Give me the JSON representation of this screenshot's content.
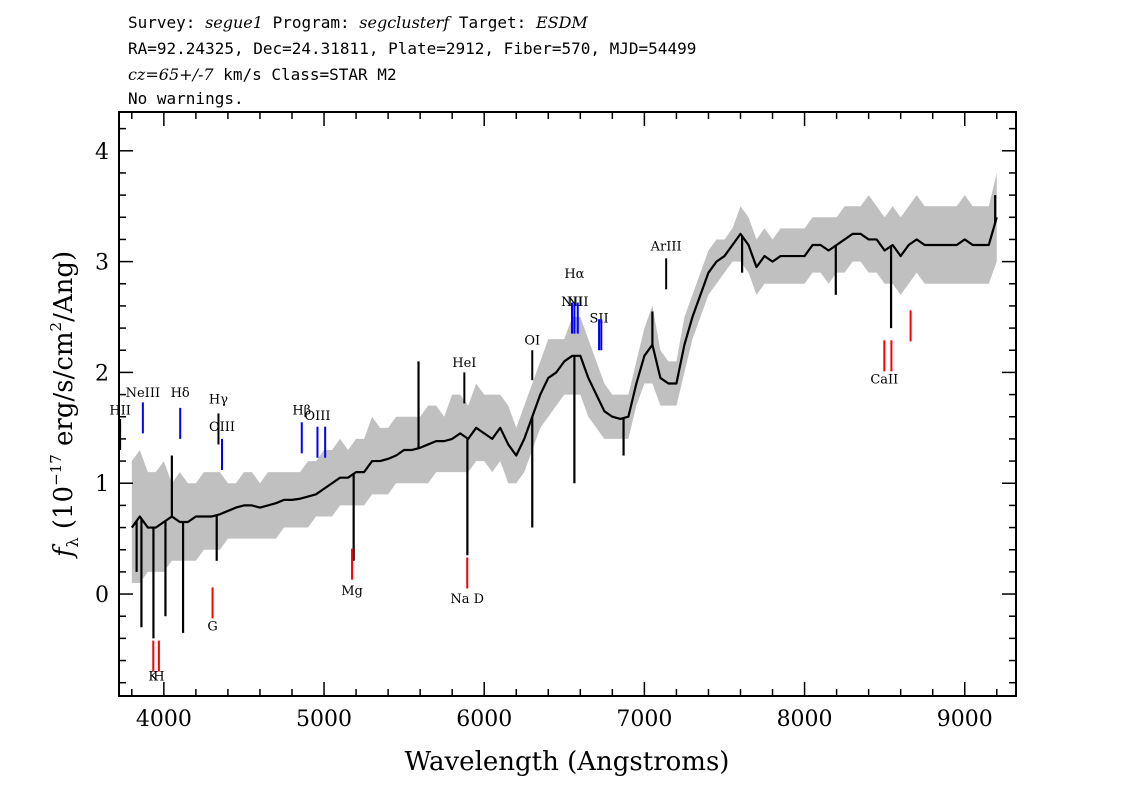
{
  "header": {
    "line1": [
      {
        "text": "Survey: ",
        "italic": false
      },
      {
        "text": "segue1",
        "italic": true
      },
      {
        "text": " Program: ",
        "italic": false
      },
      {
        "text": "segclusterf",
        "italic": true
      },
      {
        "text": " Target: ",
        "italic": false
      },
      {
        "text": "ESDM",
        "italic": true
      }
    ],
    "line2": "RA=92.24325, Dec=24.31811, Plate=2912, Fiber=570, MJD=54499",
    "line3": [
      {
        "text": "cz=65+/-7",
        "italic": true
      },
      {
        "text": " km/s Class=STAR M2",
        "italic": false
      }
    ],
    "line4": "No warnings."
  },
  "chart_data": {
    "type": "line",
    "xlabel": "Wavelength (Angstroms)",
    "ylabel": "fλ (10⁻¹⁷ erg/s/cm²/Ang)",
    "xlim": [
      3720,
      9320
    ],
    "ylim": [
      -0.92,
      4.35
    ],
    "x_ticks": [
      4000,
      5000,
      6000,
      7000,
      8000,
      9000
    ],
    "y_ticks": [
      0,
      1,
      2,
      3,
      4
    ],
    "grid": false,
    "series": [
      {
        "role": "error",
        "color": "#bbbbbb",
        "x": [
          3800,
          3850,
          3900,
          3950,
          4000,
          4050,
          4100,
          4150,
          4200,
          4250,
          4300,
          4350,
          4400,
          4450,
          4500,
          4550,
          4600,
          4650,
          4700,
          4750,
          4800,
          4850,
          4900,
          4950,
          5000,
          5050,
          5100,
          5150,
          5200,
          5250,
          5300,
          5350,
          5400,
          5450,
          5500,
          5550,
          5600,
          5650,
          5700,
          5750,
          5800,
          5850,
          5900,
          5950,
          6000,
          6050,
          6100,
          6150,
          6200,
          6250,
          6300,
          6350,
          6400,
          6450,
          6500,
          6550,
          6600,
          6650,
          6700,
          6750,
          6800,
          6850,
          6900,
          6950,
          7000,
          7050,
          7100,
          7150,
          7200,
          7250,
          7300,
          7350,
          7400,
          7450,
          7500,
          7550,
          7600,
          7650,
          7700,
          7750,
          7800,
          7850,
          7900,
          7950,
          8000,
          8050,
          8100,
          8150,
          8200,
          8250,
          8300,
          8350,
          8400,
          8450,
          8500,
          8550,
          8600,
          8650,
          8700,
          8750,
          8800,
          8850,
          8900,
          8950,
          9000,
          9050,
          9100,
          9150,
          9200
        ],
        "upper": [
          1.2,
          1.3,
          1.1,
          1.1,
          1.2,
          1.0,
          1.1,
          1.0,
          1.0,
          1.1,
          1.1,
          1.1,
          1.0,
          1.0,
          1.1,
          1.1,
          1.0,
          1.1,
          1.1,
          1.1,
          1.1,
          1.1,
          1.2,
          1.2,
          1.3,
          1.3,
          1.4,
          1.3,
          1.4,
          1.4,
          1.6,
          1.5,
          1.5,
          1.6,
          1.6,
          1.6,
          1.6,
          1.7,
          1.7,
          1.6,
          1.8,
          1.8,
          1.7,
          1.9,
          1.8,
          1.8,
          1.8,
          1.7,
          1.5,
          1.7,
          1.9,
          2.1,
          2.3,
          2.3,
          2.3,
          2.5,
          2.5,
          2.3,
          2.1,
          1.9,
          1.8,
          1.8,
          1.8,
          2.1,
          2.4,
          2.6,
          2.2,
          2.1,
          2.1,
          2.5,
          2.7,
          2.9,
          3.1,
          3.2,
          3.2,
          3.3,
          3.5,
          3.4,
          3.2,
          3.3,
          3.2,
          3.3,
          3.3,
          3.3,
          3.3,
          3.4,
          3.4,
          3.4,
          3.4,
          3.5,
          3.5,
          3.5,
          3.6,
          3.5,
          3.4,
          3.5,
          3.4,
          3.5,
          3.6,
          3.5,
          3.5,
          3.5,
          3.5,
          3.5,
          3.6,
          3.5,
          3.5,
          3.5,
          3.8
        ],
        "lower": [
          0.1,
          0.1,
          0.2,
          0.2,
          0.2,
          0.3,
          0.3,
          0.3,
          0.3,
          0.4,
          0.4,
          0.4,
          0.5,
          0.5,
          0.5,
          0.5,
          0.5,
          0.5,
          0.5,
          0.6,
          0.6,
          0.6,
          0.6,
          0.7,
          0.7,
          0.7,
          0.8,
          0.8,
          0.8,
          0.8,
          0.9,
          0.9,
          0.9,
          1.0,
          1.0,
          1.0,
          1.0,
          1.0,
          1.1,
          1.1,
          1.1,
          1.1,
          1.1,
          1.2,
          1.2,
          1.1,
          1.2,
          1.0,
          1.0,
          1.1,
          1.3,
          1.5,
          1.6,
          1.7,
          1.8,
          1.8,
          1.8,
          1.6,
          1.5,
          1.4,
          1.4,
          1.4,
          1.4,
          1.7,
          1.9,
          1.9,
          1.7,
          1.7,
          1.7,
          2.0,
          2.3,
          2.5,
          2.7,
          2.8,
          2.9,
          3.0,
          3.0,
          2.9,
          2.7,
          2.8,
          2.8,
          2.8,
          2.8,
          2.8,
          2.8,
          2.9,
          2.9,
          2.8,
          2.9,
          2.9,
          3.0,
          3.0,
          2.9,
          2.9,
          2.8,
          2.8,
          2.7,
          2.8,
          2.9,
          2.8,
          2.8,
          2.8,
          2.8,
          2.8,
          2.8,
          2.8,
          2.8,
          2.8,
          3.0
        ]
      },
      {
        "role": "flux",
        "color": "#000000",
        "x": [
          3800,
          3850,
          3900,
          3950,
          4000,
          4050,
          4100,
          4150,
          4200,
          4250,
          4300,
          4350,
          4400,
          4450,
          4500,
          4550,
          4600,
          4650,
          4700,
          4750,
          4800,
          4850,
          4900,
          4950,
          5000,
          5050,
          5100,
          5150,
          5200,
          5250,
          5300,
          5350,
          5400,
          5450,
          5500,
          5550,
          5600,
          5650,
          5700,
          5750,
          5800,
          5850,
          5900,
          5950,
          6000,
          6050,
          6100,
          6150,
          6200,
          6250,
          6300,
          6350,
          6400,
          6450,
          6500,
          6550,
          6600,
          6650,
          6700,
          6750,
          6800,
          6850,
          6900,
          6950,
          7000,
          7050,
          7100,
          7150,
          7200,
          7250,
          7300,
          7350,
          7400,
          7450,
          7500,
          7550,
          7600,
          7650,
          7700,
          7750,
          7800,
          7850,
          7900,
          7950,
          8000,
          8050,
          8100,
          8150,
          8200,
          8250,
          8300,
          8350,
          8400,
          8450,
          8500,
          8550,
          8600,
          8650,
          8700,
          8750,
          8800,
          8850,
          8900,
          8950,
          9000,
          9050,
          9100,
          9150,
          9200
        ],
        "values": [
          0.6,
          0.7,
          0.6,
          0.6,
          0.65,
          0.7,
          0.65,
          0.65,
          0.7,
          0.7,
          0.7,
          0.72,
          0.75,
          0.78,
          0.8,
          0.8,
          0.78,
          0.8,
          0.82,
          0.85,
          0.85,
          0.86,
          0.88,
          0.9,
          0.95,
          1.0,
          1.05,
          1.05,
          1.1,
          1.1,
          1.2,
          1.2,
          1.22,
          1.25,
          1.3,
          1.3,
          1.32,
          1.35,
          1.38,
          1.38,
          1.4,
          1.45,
          1.4,
          1.5,
          1.45,
          1.4,
          1.5,
          1.35,
          1.25,
          1.4,
          1.6,
          1.8,
          1.95,
          2.0,
          2.1,
          2.15,
          2.15,
          1.95,
          1.8,
          1.65,
          1.6,
          1.58,
          1.6,
          1.9,
          2.15,
          2.25,
          1.95,
          1.9,
          1.9,
          2.25,
          2.5,
          2.7,
          2.9,
          3.0,
          3.05,
          3.15,
          3.25,
          3.15,
          2.95,
          3.05,
          3.0,
          3.05,
          3.05,
          3.05,
          3.05,
          3.15,
          3.15,
          3.1,
          3.15,
          3.2,
          3.25,
          3.25,
          3.2,
          3.2,
          3.1,
          3.15,
          3.05,
          3.15,
          3.2,
          3.15,
          3.15,
          3.15,
          3.15,
          3.15,
          3.2,
          3.15,
          3.15,
          3.15,
          3.4
        ]
      }
    ],
    "spikes": [
      {
        "x": 3830,
        "y": 0.2
      },
      {
        "x": 3860,
        "y": -0.3
      },
      {
        "x": 3935,
        "y": -0.4
      },
      {
        "x": 4010,
        "y": -0.2
      },
      {
        "x": 4050,
        "y": 1.25
      },
      {
        "x": 4120,
        "y": -0.35
      },
      {
        "x": 4330,
        "y": 0.3
      },
      {
        "x": 5185,
        "y": 0.3
      },
      {
        "x": 5590,
        "y": 2.1
      },
      {
        "x": 5895,
        "y": 0.35
      },
      {
        "x": 6300,
        "y": 0.6
      },
      {
        "x": 6563,
        "y": 1.0
      },
      {
        "x": 6870,
        "y": 1.25
      },
      {
        "x": 7050,
        "y": 2.55
      },
      {
        "x": 7610,
        "y": 2.9
      },
      {
        "x": 8195,
        "y": 2.7
      },
      {
        "x": 8540,
        "y": 2.4
      },
      {
        "x": 9190,
        "y": 3.6
      }
    ],
    "emission_lines": [
      {
        "label": "HII",
        "x": 3727,
        "label_y": 1.62,
        "y0": 1.3,
        "y1": 1.58,
        "color": "#000000"
      },
      {
        "label": "NeIII",
        "x": 3869,
        "label_y": 1.78,
        "y0": 1.45,
        "y1": 1.73,
        "color": "#0000ff"
      },
      {
        "label": "Hδ",
        "x": 4102,
        "label_y": 1.78,
        "y0": 1.4,
        "y1": 1.68,
        "color": "#0000ff"
      },
      {
        "label": "Hγ",
        "x": 4341,
        "label_y": 1.72,
        "y0": 1.35,
        "y1": 1.63,
        "color": "#000000"
      },
      {
        "label": "OIII",
        "x": 4363,
        "label_y": 1.47,
        "y0": 1.12,
        "y1": 1.4,
        "color": "#0000ff"
      },
      {
        "label": "Hβ",
        "x": 4861,
        "label_y": 1.62,
        "y0": 1.27,
        "y1": 1.55,
        "color": "#0000ff"
      },
      {
        "label": "OIII",
        "x": 4959,
        "label_y": 1.57,
        "y0": 1.23,
        "y1": 1.51,
        "color": "#0000ff"
      },
      {
        "label": "",
        "x": 5007,
        "label_y": 1.57,
        "y0": 1.23,
        "y1": 1.51,
        "color": "#0000ff"
      },
      {
        "label": "HeI",
        "x": 5876,
        "label_y": 2.05,
        "y0": 1.72,
        "y1": 2.0,
        "color": "#000000"
      },
      {
        "label": "OI",
        "x": 6300,
        "label_y": 2.25,
        "y0": 1.93,
        "y1": 2.2,
        "color": "#000000"
      },
      {
        "label": "NII",
        "x": 6548,
        "label_y": 2.6,
        "y0": 2.35,
        "y1": 2.63,
        "color": "#0000ff"
      },
      {
        "label": "Hα",
        "x": 6563,
        "label_y": 2.85,
        "y0": 2.35,
        "y1": 2.63,
        "color": "#0000ff"
      },
      {
        "label": "NII",
        "x": 6584,
        "label_y": 2.6,
        "y0": 2.35,
        "y1": 2.63,
        "color": "#0000ff"
      },
      {
        "label": "SII",
        "x": 6717,
        "label_y": 2.45,
        "y0": 2.2,
        "y1": 2.48,
        "color": "#0000ff"
      },
      {
        "label": "",
        "x": 6731,
        "label_y": 2.45,
        "y0": 2.2,
        "y1": 2.48,
        "color": "#0000ff"
      },
      {
        "label": "ArIII",
        "x": 7136,
        "label_y": 3.1,
        "y0": 2.75,
        "y1": 3.03,
        "color": "#000000"
      }
    ],
    "absorption_lines": [
      {
        "label": "K",
        "x": 3934,
        "label_y": -0.78,
        "y0": -0.7,
        "y1": -0.42,
        "color": "#ff0000"
      },
      {
        "label": "H",
        "x": 3969,
        "label_y": -0.78,
        "y0": -0.7,
        "y1": -0.42,
        "color": "#ff0000"
      },
      {
        "label": "G",
        "x": 4304,
        "label_y": -0.33,
        "y0": -0.22,
        "y1": 0.06,
        "color": "#ff0000"
      },
      {
        "label": "Mg",
        "x": 5175,
        "label_y": -0.01,
        "y0": 0.13,
        "y1": 0.41,
        "color": "#ff0000"
      },
      {
        "label": "Na D",
        "x": 5894,
        "label_y": -0.08,
        "y0": 0.05,
        "y1": 0.33,
        "color": "#ff0000"
      },
      {
        "label": "CaII",
        "x": 8498,
        "label_y": 1.9,
        "y0": 2.01,
        "y1": 2.29,
        "color": "#ff0000"
      },
      {
        "label": "",
        "x": 8542,
        "label_y": 1.9,
        "y0": 2.01,
        "y1": 2.29,
        "color": "#ff0000"
      },
      {
        "label": "",
        "x": 8662,
        "label_y": 1.9,
        "y0": 2.28,
        "y1": 2.56,
        "color": "#ff0000"
      }
    ]
  }
}
